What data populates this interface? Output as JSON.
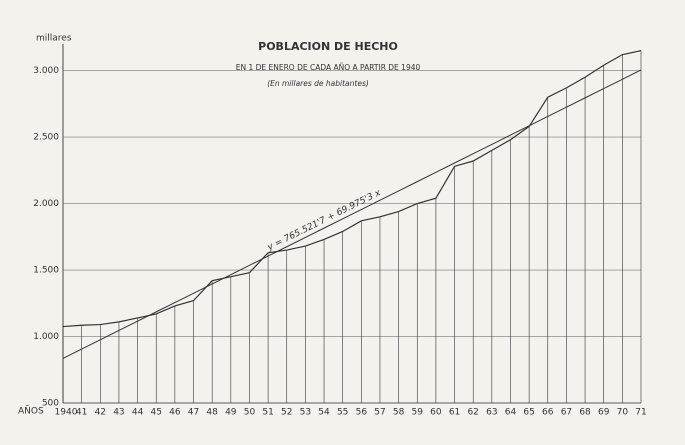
{
  "chart_data": {
    "type": "line",
    "title": "POBLACION DE HECHO",
    "subtitle": "EN 1 DE ENERO DE CADA AÑO A PARTIR DE 1940",
    "note": "(En millares de habitantes)",
    "y_label": "millares",
    "x_label": "AÑOS",
    "categories": [
      "1940",
      "41",
      "42",
      "43",
      "44",
      "45",
      "46",
      "47",
      "48",
      "49",
      "50",
      "51",
      "52",
      "53",
      "54",
      "55",
      "56",
      "57",
      "58",
      "59",
      "60",
      "61",
      "62",
      "63",
      "64",
      "65",
      "66",
      "67",
      "68",
      "69",
      "70",
      "71"
    ],
    "series": [
      {
        "name": "Poblacion",
        "color": "#333333",
        "values": [
          1075,
          1085,
          1090,
          1110,
          1140,
          1170,
          1230,
          1270,
          1420,
          1450,
          1480,
          1630,
          1650,
          1680,
          1730,
          1790,
          1870,
          1900,
          1940,
          2000,
          2040,
          2280,
          2320,
          2400,
          2480,
          2580,
          2800,
          2870,
          2950,
          3040,
          3120,
          3150
        ]
      },
      {
        "name": "y = 765.521'7 + 69.975'3 x",
        "color": "#333333",
        "values": [
          835.5,
          905.5,
          975.4,
          1045.4,
          1115.4,
          1185.4,
          1255.3,
          1325.3,
          1395.3,
          1465.3,
          1535.3,
          1605.2,
          1675.2,
          1745.2,
          1815.2,
          1885.1,
          1955.1,
          2025.1,
          2095.1,
          2165.0,
          2235.0,
          2305.0,
          2375.0,
          2444.9,
          2514.9,
          2584.9,
          2654.9,
          2724.9,
          2794.8,
          2864.8,
          2934.8,
          3004.8
        ]
      }
    ],
    "ylim": [
      500,
      3200
    ],
    "yticks": [
      500,
      {
        "value": 1000,
        "label": "1.000"
      },
      {
        "value": 1500,
        "label": "1.500"
      },
      {
        "value": 2000,
        "label": "2.000"
      },
      {
        "value": 2500,
        "label": "2.500"
      },
      {
        "value": 3000,
        "label": "3.000"
      }
    ],
    "grid": true
  }
}
